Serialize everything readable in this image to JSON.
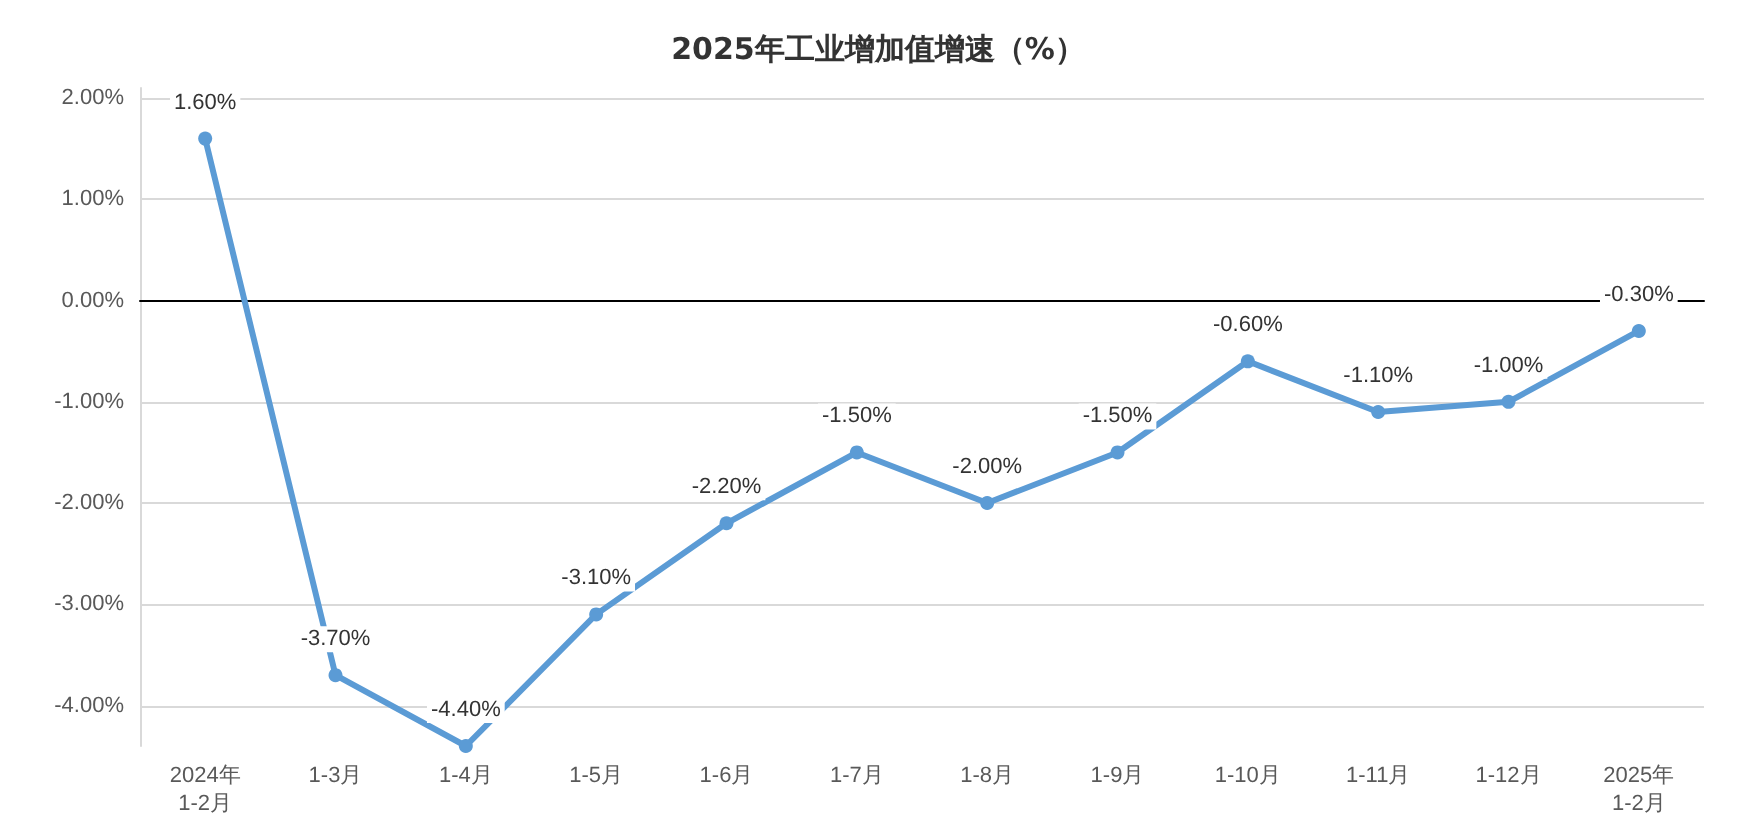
{
  "chart_data": {
    "type": "line",
    "title": "2025年工业增加值增速（%）",
    "categories": [
      "2024年\n1-2月",
      "1-3月",
      "1-4月",
      "1-5月",
      "1-6月",
      "1-7月",
      "1-8月",
      "1-9月",
      "1-10月",
      "1-11月",
      "1-12月",
      "2025年\n1-2月"
    ],
    "series": [
      {
        "color": "#5b9bd5",
        "values": [
          1.6,
          -3.7,
          -4.4,
          -3.1,
          -2.2,
          -1.5,
          -2.0,
          -1.5,
          -0.6,
          -1.1,
          -1.0,
          -0.3
        ],
        "value_labels": [
          "1.60%",
          "-3.70%",
          "-4.40%",
          "-3.10%",
          "-2.20%",
          "-1.50%",
          "-2.00%",
          "-1.50%",
          "-0.60%",
          "-1.10%",
          "-1.00%",
          "-0.30%"
        ]
      }
    ],
    "ylim": [
      -4.4,
      2.1
    ],
    "yticks": [
      {
        "value": 2,
        "label": "2.00%"
      },
      {
        "value": 1,
        "label": "1.00%"
      },
      {
        "value": 0,
        "label": "0.00%"
      },
      {
        "value": -1,
        "label": "-1.00%"
      },
      {
        "value": -2,
        "label": "-2.00%"
      },
      {
        "value": -3,
        "label": "-3.00%"
      },
      {
        "value": -4,
        "label": "-4.00%"
      }
    ],
    "grid": "y",
    "marker": "circle",
    "line_style": "solid"
  }
}
